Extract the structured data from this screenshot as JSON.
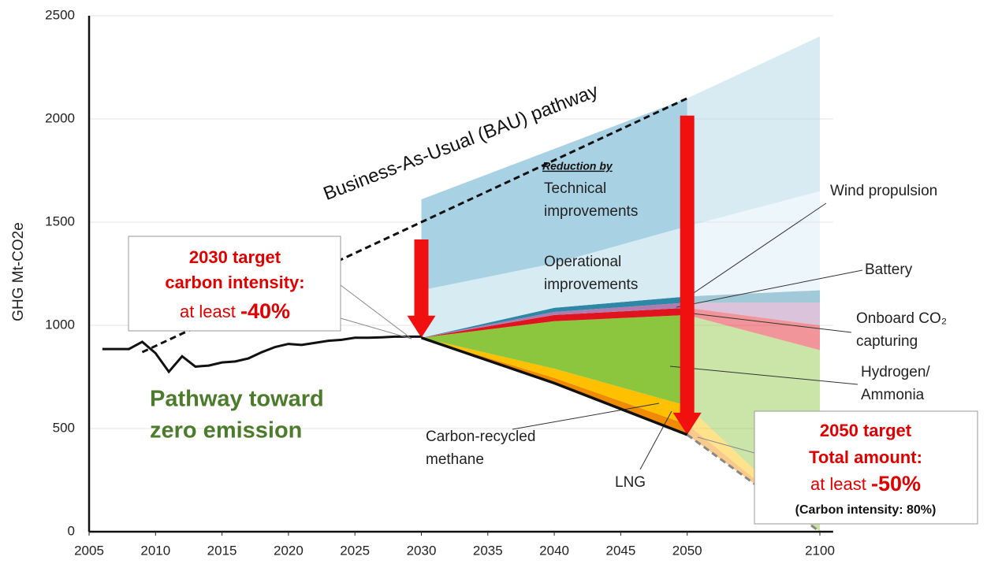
{
  "chart_data": {
    "type": "stacked_area",
    "ylabel": "GHG Mt-CO2e",
    "ylim": [
      0,
      2500
    ],
    "yticks": [
      0,
      500,
      1000,
      1500,
      2000,
      2500
    ],
    "xlim": [
      2005,
      2105
    ],
    "xticks": [
      2005,
      2010,
      2015,
      2020,
      2025,
      2030,
      2035,
      2040,
      2045,
      2050,
      2100
    ],
    "grid": true,
    "history": {
      "x": [
        2006,
        2008,
        2009,
        2010,
        2011,
        2012,
        2013,
        2014,
        2015,
        2016,
        2017,
        2018,
        2019,
        2020,
        2021,
        2022,
        2023,
        2024,
        2025,
        2026,
        2027,
        2028,
        2029,
        2030
      ],
      "values": [
        885,
        885,
        920,
        865,
        775,
        850,
        800,
        805,
        820,
        825,
        840,
        870,
        895,
        910,
        905,
        915,
        925,
        930,
        940,
        940,
        942,
        945,
        945,
        945
      ]
    },
    "bau": {
      "label": "Business-As-Usual (BAU) pathway",
      "x": [
        2009,
        2050
      ],
      "values": [
        870,
        2100
      ]
    },
    "x": [
      2030,
      2040,
      2050,
      2100
    ],
    "pathway": [
      940,
      720,
      470,
      0
    ],
    "pathway_label": [
      "Pathway toward",
      "zero emission"
    ],
    "series": [
      {
        "name_lines": [
          "LNG"
        ],
        "color": "#f08a00",
        "values": [
          0,
          25,
          50,
          0
        ]
      },
      {
        "name_lines": [
          "Carbon-recycled",
          "methane"
        ],
        "color": "#ffc000",
        "values": [
          0,
          45,
          90,
          0
        ]
      },
      {
        "name_lines": [
          "Hydrogen/",
          "Ammonia"
        ],
        "color": "#8cc63f",
        "values": [
          0,
          230,
          440,
          880
        ]
      },
      {
        "name_lines": [
          "Onboard CO₂",
          "capturing"
        ],
        "color": "#e0141e",
        "values": [
          0,
          30,
          35,
          120
        ]
      },
      {
        "name_lines": [
          "Battery"
        ],
        "color": "#b07cb0",
        "values": [
          0,
          15,
          25,
          110
        ]
      },
      {
        "name_lines": [
          "Wind propulsion"
        ],
        "color": "#2f87a6",
        "values": [
          0,
          20,
          30,
          60
        ]
      },
      {
        "name_lines": [
          "Operational",
          "improvements"
        ],
        "color": "#d7ebf3",
        "values": [
          230,
          215,
          340,
          480
        ]
      },
      {
        "name_lines": [
          "Technical",
          "improvements"
        ],
        "color": "#a8d2e4",
        "values": [
          440,
          555,
          620,
          750
        ]
      }
    ],
    "reduction_label": "Reduction by",
    "target_2030": [
      "2030 target",
      "carbon intensity:",
      "at least ",
      "-40%"
    ],
    "target_2050": [
      "2050 target",
      "Total amount:",
      "at least ",
      "-50%",
      "(Carbon intensity: 80%)"
    ]
  }
}
